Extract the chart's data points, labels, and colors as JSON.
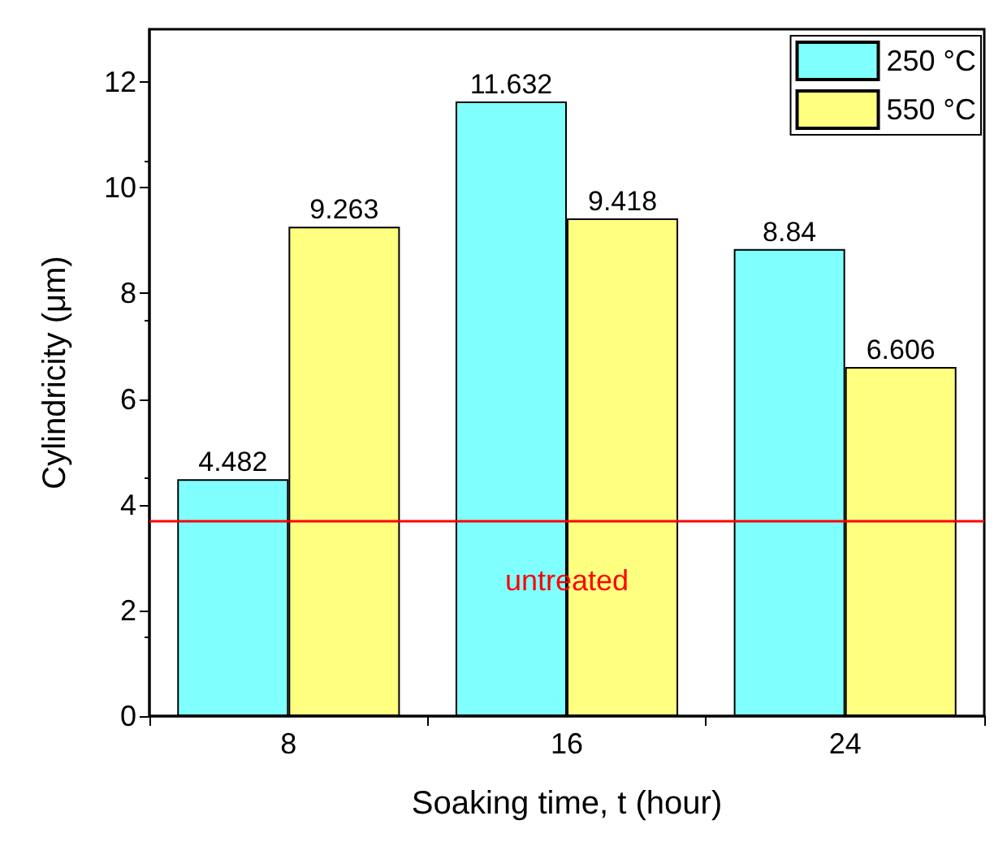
{
  "chart_data": {
    "type": "bar",
    "xlabel": "Soaking time, t (hour)",
    "ylabel": "Cylindricity (μm)",
    "categories": [
      "8",
      "16",
      "24"
    ],
    "series": [
      {
        "name": "250 °C",
        "color": "#80ffff",
        "values": [
          4.482,
          11.632,
          8.84
        ]
      },
      {
        "name": "550 °C",
        "color": "#ffff80",
        "values": [
          9.263,
          9.418,
          6.606
        ]
      }
    ],
    "ylim": [
      0,
      13
    ],
    "yticks": [
      0,
      2,
      4,
      6,
      8,
      10,
      12
    ],
    "ref_lines": [
      {
        "axis": "y",
        "value": 3.7,
        "label": "untreated",
        "color": "#ff0000"
      }
    ],
    "data_labels": true,
    "legend": "top right",
    "grid": false
  }
}
